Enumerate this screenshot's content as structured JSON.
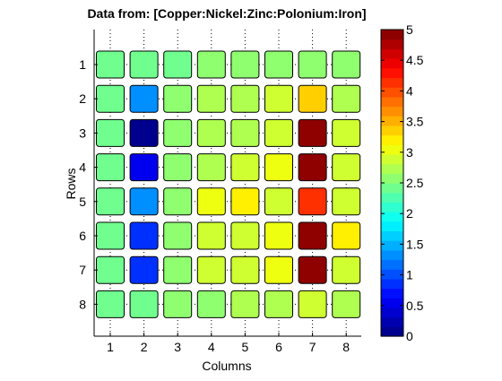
{
  "chart_data": {
    "type": "heatmap",
    "title": "Data from: [Copper:Nickel:Zinc:Polonium:Iron]",
    "xlabel": "Columns",
    "ylabel": "Rows",
    "x_ticks": [
      "1",
      "2",
      "3",
      "4",
      "5",
      "6",
      "7",
      "8"
    ],
    "y_ticks": [
      "1",
      "2",
      "3",
      "4",
      "5",
      "6",
      "7",
      "8"
    ],
    "grid": "dotted",
    "colorbar": {
      "placement": "right",
      "range": [
        0,
        5
      ],
      "ticks": [
        "0",
        "0.5",
        "1",
        "1.5",
        "2",
        "2.5",
        "3",
        "3.5",
        "4",
        "4.5",
        "5"
      ],
      "levels": 32
    },
    "values": [
      [
        2.4,
        2.4,
        2.4,
        2.5,
        2.5,
        2.5,
        2.5,
        2.5
      ],
      [
        2.4,
        1.4,
        2.5,
        2.8,
        2.8,
        2.9,
        3.3,
        2.8
      ],
      [
        2.4,
        0.1,
        2.5,
        2.8,
        2.8,
        2.9,
        4.9,
        2.9
      ],
      [
        2.4,
        0.6,
        2.5,
        2.8,
        2.9,
        3.1,
        4.9,
        2.9
      ],
      [
        2.4,
        1.4,
        2.5,
        3.1,
        3.2,
        2.9,
        4.2,
        2.9
      ],
      [
        2.4,
        0.9,
        2.5,
        2.9,
        2.9,
        3.1,
        4.9,
        3.2
      ],
      [
        2.4,
        0.9,
        2.5,
        2.9,
        2.9,
        3.1,
        4.9,
        2.9
      ],
      [
        2.4,
        2.4,
        2.5,
        2.5,
        2.8,
        2.8,
        2.9,
        2.8
      ]
    ]
  }
}
